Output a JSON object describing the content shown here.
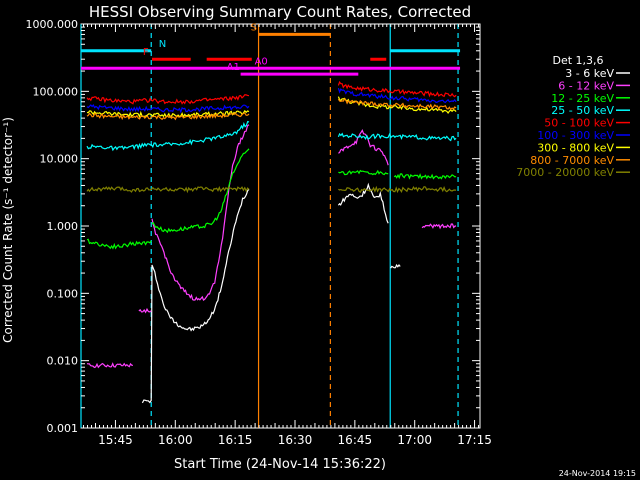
{
  "chart_data": {
    "type": "line",
    "title": "HESSI Observing Summary Count Rates, Corrected",
    "xlabel": "Start Time (24-Nov-14 15:36:22)",
    "ylabel": "Corrected Count Rate (s⁻¹ detector⁻¹)",
    "y_scale": "log",
    "ylim": [
      0.001,
      1000
    ],
    "xlim_minutes_after_1536_22": [
      0,
      100
    ],
    "x_tick_labels": [
      "15:45",
      "16:00",
      "16:15",
      "16:30",
      "16:45",
      "17:00",
      "17:15"
    ],
    "y_tick_labels": [
      "1000.000",
      "100.000",
      "10.000",
      "1.000",
      "0.100",
      "0.010",
      "0.001"
    ],
    "legend_title": "Det 1,3,6",
    "legend_placement": "right",
    "timestamp": "24-Nov-2014 19:15",
    "series": [
      {
        "name": "3 - 6 keV",
        "color": "#ffffff",
        "segments": [
          {
            "t": [
              15.4,
              16.5,
              17.6,
              17.8,
              18.5,
              19.5,
              20.6,
              21.8,
              23,
              24.5,
              26,
              27.6,
              28.5,
              29.5,
              31,
              32.5,
              34,
              35.5,
              37,
              38.5,
              40.5,
              42.1
            ],
            "y": [
              0.0025,
              0.0025,
              0.0025,
              0.25,
              0.2,
              0.12,
              0.07,
              0.05,
              0.04,
              0.034,
              0.03,
              0.029,
              0.03,
              0.031,
              0.035,
              0.045,
              0.07,
              0.15,
              0.4,
              1.0,
              2.5,
              3.5
            ]
          },
          {
            "t": [
              64.5,
              66,
              67.5,
              69,
              70.5,
              72,
              73.5,
              75,
              76,
              77
            ],
            "y": [
              2.0,
              2.5,
              3.0,
              2.6,
              2.9,
              4.0,
              2.5,
              3.0,
              1.8,
              1.1
            ]
          },
          {
            "t": [
              77.6,
              78.5,
              80
            ],
            "y": [
              0.25,
              0.25,
              0.25
            ]
          }
        ]
      },
      {
        "name": "6 - 12 keV",
        "color": "#ff40ff",
        "segments": [
          {
            "t": [
              1.5,
              3,
              5,
              7,
              9.5,
              11.5,
              13
            ],
            "y": [
              0.0085,
              0.0085,
              0.0085,
              0.0085,
              0.0085,
              0.0085,
              0.0085
            ]
          },
          {
            "t": [
              14.5,
              15.5,
              17.6
            ],
            "y": [
              0.055,
              0.055,
              0.055
            ]
          },
          {
            "t": [
              17.8,
              19,
              20.5,
              22,
              23.5,
              25,
              26.5,
              28,
              29.5,
              31,
              32.5,
              33.5,
              34.5,
              35.5,
              36.5,
              38,
              39.5,
              41,
              42.1
            ],
            "y": [
              1.2,
              0.7,
              0.45,
              0.25,
              0.16,
              0.12,
              0.1,
              0.085,
              0.08,
              0.085,
              0.11,
              0.15,
              0.3,
              0.7,
              2.0,
              8.0,
              16,
              25,
              32
            ]
          },
          {
            "t": [
              64.5,
              66,
              67.5,
              69,
              70.5,
              71.5,
              72.5,
              74,
              75.5,
              77
            ],
            "y": [
              12,
              14,
              16,
              18,
              25,
              22,
              16,
              14,
              13,
              8
            ]
          },
          {
            "t": [
              85.5,
              87,
              88.5,
              90,
              92.5,
              94
            ],
            "y": [
              1.0,
              1.0,
              1.0,
              1.0,
              1.0,
              1.0
            ]
          }
        ]
      },
      {
        "name": "12 - 25 keV",
        "color": "#00ff00",
        "segments": [
          {
            "t": [
              1.5,
              4,
              7,
              10,
              13,
              15.5,
              17.6
            ],
            "y": [
              0.6,
              0.55,
              0.5,
              0.5,
              0.55,
              0.55,
              0.6
            ]
          },
          {
            "t": [
              17.8,
              20,
              22,
              25,
              28,
              31,
              33,
              35,
              36.5,
              38,
              40,
              42.1
            ],
            "y": [
              1.1,
              0.9,
              0.85,
              0.9,
              0.95,
              1.0,
              1.1,
              1.6,
              3,
              6,
              10,
              14
            ]
          },
          {
            "t": [
              64.5,
              67,
              70,
              72.5,
              75,
              77
            ],
            "y": [
              6,
              6.2,
              6.5,
              6.0,
              6.2,
              6
            ]
          },
          {
            "t": [
              78.5,
              81,
              84,
              87,
              90,
              94
            ],
            "y": [
              5.5,
              5.6,
              5.4,
              5.5,
              5.3,
              5.4
            ]
          }
        ]
      },
      {
        "name": "25 - 50 keV",
        "color": "#00ffff",
        "segments": [
          {
            "t": [
              1.5,
              5,
              9,
              13,
              17,
              21,
              25,
              29,
              33,
              37,
              39,
              40.5,
              42.1
            ],
            "y": [
              15,
              15,
              14,
              15,
              16,
              16,
              17,
              18,
              20,
              22,
              25,
              30,
              35
            ]
          },
          {
            "t": [
              64.5,
              68,
              72,
              76,
              80,
              84,
              88,
              94
            ],
            "y": [
              22,
              22,
              21,
              22,
              21,
              21,
              20,
              20
            ]
          }
        ]
      },
      {
        "name": "50 - 100 keV",
        "color": "#ff0000",
        "segments": [
          {
            "t": [
              1.5,
              5,
              9,
              13,
              17,
              21,
              25,
              29,
              33,
              37,
              40,
              42.1
            ],
            "y": [
              80,
              76,
              72,
              70,
              74,
              70,
              70,
              72,
              75,
              78,
              82,
              86
            ]
          },
          {
            "t": [
              64.5,
              67,
              70,
              74,
              78,
              82,
              86,
              90,
              94
            ],
            "y": [
              130,
              115,
              110,
              105,
              100,
              96,
              93,
              90,
              88
            ]
          }
        ]
      },
      {
        "name": "100 - 300 keV",
        "color": "#0000ff",
        "segments": [
          {
            "t": [
              1.5,
              5,
              9,
              13,
              17,
              21,
              25,
              29,
              33,
              37,
              40,
              42.1
            ],
            "y": [
              60,
              58,
              56,
              54,
              55,
              53,
              53,
              54,
              56,
              57,
              58,
              60
            ]
          },
          {
            "t": [
              64.5,
              67,
              70,
              74,
              78,
              82,
              86,
              90,
              94
            ],
            "y": [
              105,
              95,
              90,
              85,
              80,
              77,
              74,
              72,
              70
            ]
          }
        ]
      },
      {
        "name": "300 - 800 keV",
        "color": "#ffff00",
        "segments": [
          {
            "t": [
              1.5,
              5,
              9,
              13,
              17,
              21,
              25,
              29,
              33,
              37,
              40,
              42.1
            ],
            "y": [
              50,
              48,
              46,
              45,
              45,
              44,
              44,
              45,
              46,
              47,
              48,
              50
            ]
          },
          {
            "t": [
              64.5,
              67,
              70,
              74,
              78,
              82,
              86,
              90,
              94
            ],
            "y": [
              80,
              72,
              65,
              60,
              58,
              56,
              54,
              52,
              50
            ]
          }
        ]
      },
      {
        "name": "800 - 7000 keV",
        "color": "#ff8c00",
        "segments": [
          {
            "t": [
              1.5,
              5,
              9,
              13,
              17,
              21,
              25,
              29,
              33,
              37,
              40,
              42.1
            ],
            "y": [
              45,
              43,
              42,
              41,
              42,
              41,
              41,
              42,
              43,
              44,
              45,
              46
            ]
          },
          {
            "t": [
              64.5,
              67,
              70,
              74,
              78,
              82,
              86,
              90,
              94
            ],
            "y": [
              75,
              70,
              68,
              65,
              63,
              61,
              60,
              58,
              57
            ]
          }
        ]
      },
      {
        "name": "7000 - 20000 keV",
        "color": "#808000",
        "segments": [
          {
            "t": [
              1.5,
              5,
              9,
              13,
              17,
              21,
              25,
              29,
              33,
              37,
              40,
              42.1
            ],
            "y": [
              3.5,
              3.5,
              3.6,
              3.4,
              3.5,
              3.5,
              3.4,
              3.6,
              3.5,
              3.5,
              3.6,
              3.5
            ]
          },
          {
            "t": [
              64.5,
              67,
              70,
              74,
              78,
              82,
              86,
              90,
              94
            ],
            "y": [
              3.5,
              3.6,
              3.4,
              3.5,
              3.4,
              3.5,
              3.6,
              3.5,
              3.4
            ]
          }
        ]
      }
    ],
    "flag_bars": [
      {
        "label": "N",
        "color": "#00e5ff",
        "y": 400,
        "label_t": 19.5,
        "spans": [
          [
            0,
            17.6
          ],
          [
            77.5,
            95
          ]
        ]
      },
      {
        "label": "F",
        "color": "#ff0000",
        "y": 300,
        "label_t": 15.5,
        "spans": [
          [
            17.8,
            27.5
          ],
          [
            31.5,
            42.8
          ],
          [
            72.5,
            76.5
          ]
        ]
      },
      {
        "label": "S",
        "color": "#ff8000",
        "y": 700,
        "label_t": 42.5,
        "spans": [
          [
            44.5,
            62.5
          ]
        ]
      },
      {
        "label": "A0",
        "color": "#ff00ff",
        "y": 220,
        "label_t": 43.5,
        "spans": [
          [
            0,
            95
          ]
        ]
      },
      {
        "label": "A1",
        "color": "#ff00ff",
        "y": 180,
        "label_t": 36.5,
        "spans": [
          [
            40,
            69.5
          ]
        ]
      }
    ],
    "vertical_markers": [
      {
        "t": 0,
        "color": "#00e5ff",
        "style": "solid"
      },
      {
        "t": 17.6,
        "color": "#00e5ff",
        "style": "dashed"
      },
      {
        "t": 44.5,
        "color": "#ff8000",
        "style": "solid"
      },
      {
        "t": 62.5,
        "color": "#ff8000",
        "style": "dashed"
      },
      {
        "t": 77.5,
        "color": "#00e5ff",
        "style": "solid"
      },
      {
        "t": 94.5,
        "color": "#00e5ff",
        "style": "dashed"
      }
    ]
  }
}
